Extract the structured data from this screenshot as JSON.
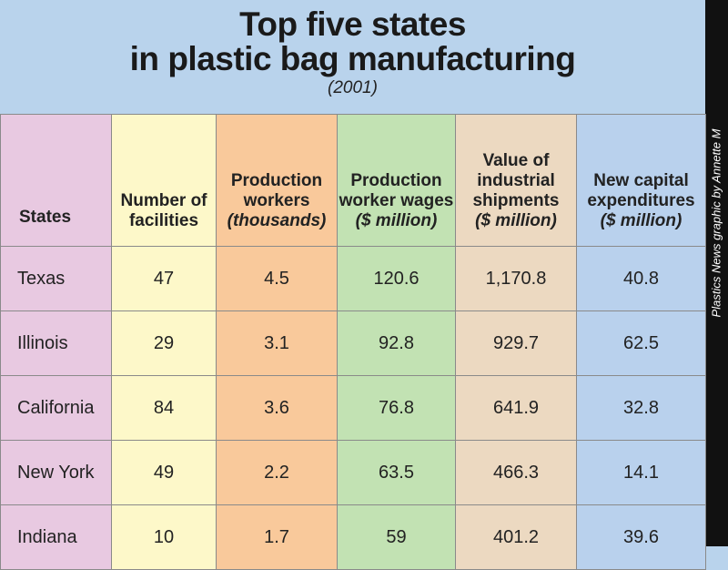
{
  "header": {
    "title_lines": [
      "Top five states",
      "in plastic bag manufacturing"
    ],
    "subtitle": "(2001)",
    "credit": "Plastics News graphic by Annette M"
  },
  "table": {
    "columns": [
      {
        "title": "States"
      },
      {
        "title": "Number of facilities"
      },
      {
        "title": "Production workers",
        "unit": "(thousands)"
      },
      {
        "title": "Production worker wages",
        "unit": "($ million)"
      },
      {
        "title": "Value of industrial shipments",
        "unit": "($ million)"
      },
      {
        "title": "New capital expenditures",
        "unit": "($ million)"
      }
    ],
    "rows": [
      [
        "Texas",
        "47",
        "4.5",
        "120.6",
        "1,170.8",
        "40.8"
      ],
      [
        "Illinois",
        "29",
        "3.1",
        "92.8",
        "929.7",
        "62.5"
      ],
      [
        "California",
        "84",
        "3.6",
        "76.8",
        "641.9",
        "32.8"
      ],
      [
        "New York",
        "49",
        "2.2",
        "63.5",
        "466.3",
        "14.1"
      ],
      [
        "Indiana",
        "10",
        "1.7",
        "59",
        "401.2",
        "39.6"
      ]
    ]
  }
}
